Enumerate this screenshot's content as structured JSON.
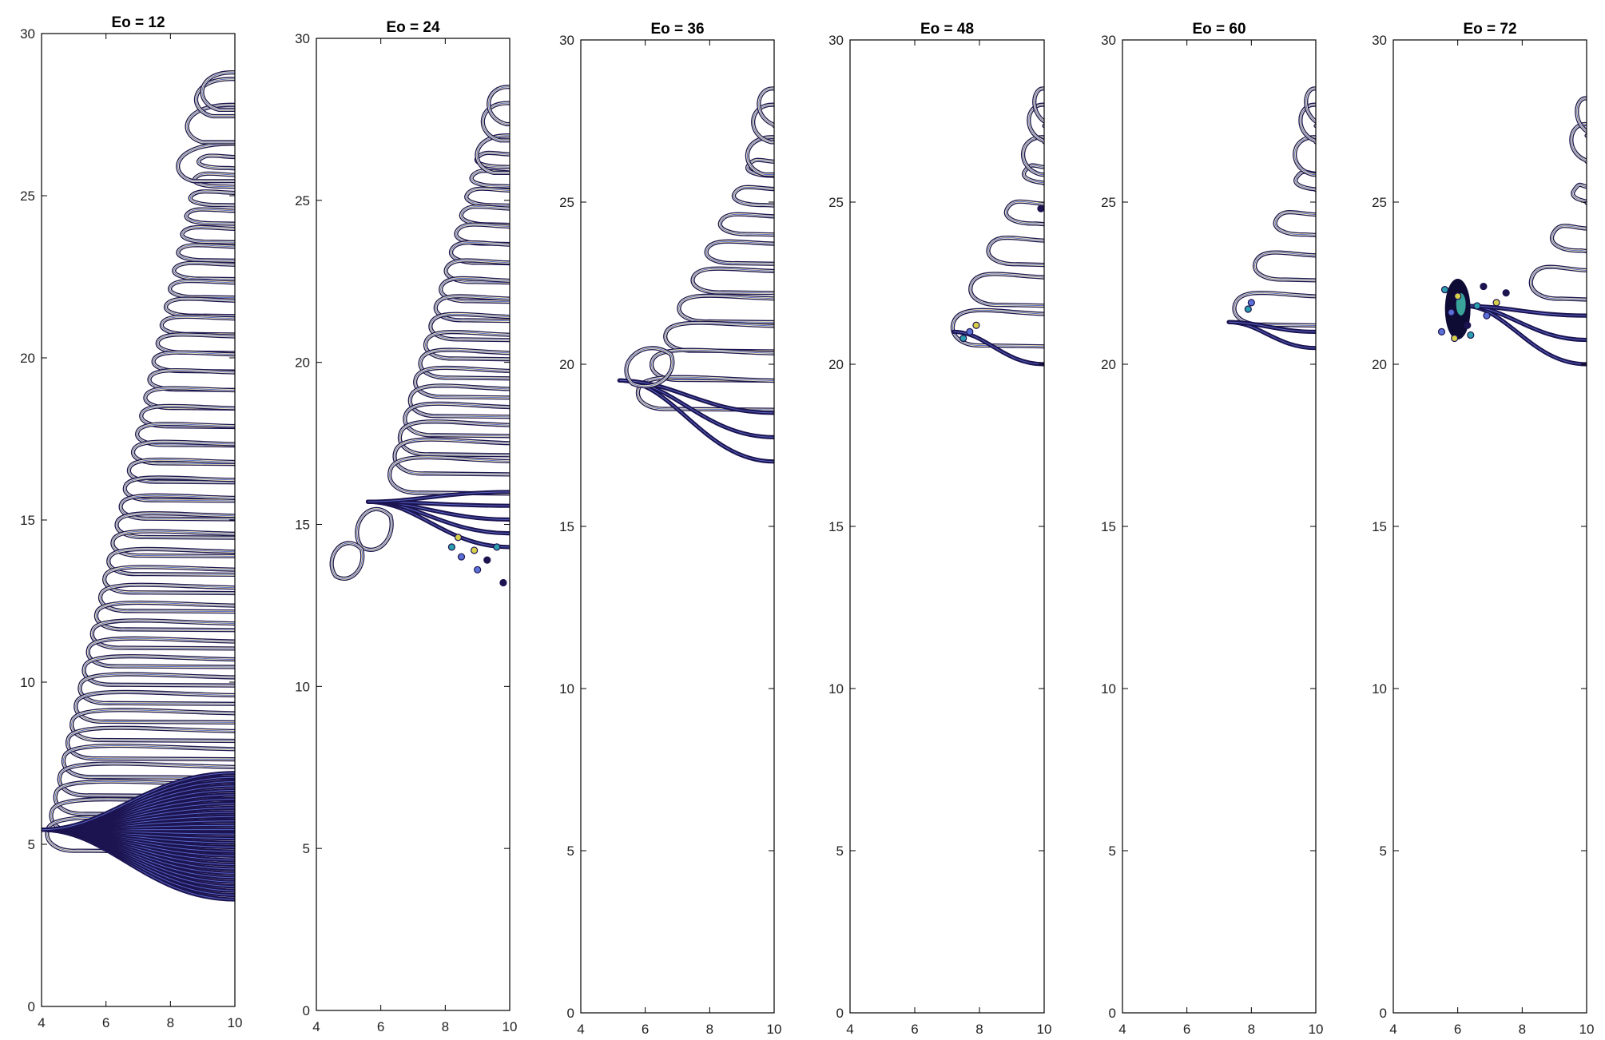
{
  "chart_data": [
    {
      "type": "contour",
      "title": "Eo = 12",
      "xlim": [
        4,
        10
      ],
      "ylim": [
        0,
        30
      ],
      "xticks": [
        "4",
        "6",
        "8",
        "10"
      ],
      "yticks": [
        "0",
        "5",
        "10",
        "15",
        "20",
        "25",
        "30"
      ],
      "rings_top": [
        [
          8.2,
          26.0
        ],
        [
          8.5,
          27.2
        ],
        [
          8.8,
          28.0
        ],
        [
          9.0,
          28.2
        ]
      ],
      "cups": {
        "count": 38,
        "y_start": 26.0,
        "y_end": 5.2,
        "tip_x_start": 8.9,
        "tip_x_end": 4.2,
        "width_start": 0.35,
        "width_end": 0.95
      },
      "tails": {
        "count": 30,
        "x_start": 4.0,
        "y_start": 5.45,
        "y_end_min": 3.3,
        "y_end_max": 7.2
      },
      "specks": []
    },
    {
      "type": "contour",
      "title": "Eo = 24",
      "xlim": [
        4,
        10
      ],
      "ylim": [
        0,
        30
      ],
      "xticks": [
        "4",
        "6",
        "8",
        "10"
      ],
      "yticks": [
        "0",
        "5",
        "10",
        "15",
        "20",
        "25",
        "30"
      ],
      "rings_top": [
        [
          9.0,
          26.4
        ],
        [
          9.2,
          27.4
        ],
        [
          9.4,
          27.9
        ]
      ],
      "cups": {
        "count": 18,
        "y_start": 26.2,
        "y_end": 16.4,
        "tip_x_start": 9.0,
        "tip_x_end": 6.3,
        "width_start": 0.4,
        "width_end": 1.0
      },
      "tails": {
        "count": 5,
        "x_start": 5.6,
        "y_start": 15.7,
        "y_end_min": 14.3,
        "y_end_max": 16.0
      },
      "loops": [
        [
          5.4,
          14.3,
          0.9,
          1.6
        ],
        [
          4.6,
          13.4,
          0.8,
          1.4
        ]
      ],
      "specks": [
        [
          8.2,
          14.3
        ],
        [
          8.5,
          14.0
        ],
        [
          8.9,
          14.2
        ],
        [
          9.3,
          13.9
        ],
        [
          9.6,
          14.3
        ],
        [
          9.0,
          13.6
        ],
        [
          8.4,
          14.6
        ],
        [
          9.8,
          13.2
        ]
      ]
    },
    {
      "type": "contour",
      "title": "Eo = 36",
      "xlim": [
        4,
        10
      ],
      "ylim": [
        0,
        30
      ],
      "xticks": [
        "4",
        "6",
        "8",
        "10"
      ],
      "yticks": [
        "0",
        "5",
        "10",
        "15",
        "20",
        "25",
        "30"
      ],
      "rings_top": [
        [
          9.2,
          26.4
        ],
        [
          9.4,
          27.4
        ],
        [
          9.6,
          27.9
        ]
      ],
      "cups": {
        "count": 9,
        "y_start": 26.0,
        "y_end": 19.0,
        "tip_x_start": 9.2,
        "tip_x_end": 5.8,
        "width_start": 0.45,
        "width_end": 0.9
      },
      "tails": {
        "count": 3,
        "x_start": 5.2,
        "y_start": 19.5,
        "y_end_min": 17.0,
        "y_end_max": 18.5
      },
      "loops": [
        [
          5.6,
          19.4,
          1.2,
          1.5
        ]
      ],
      "specks": []
    },
    {
      "type": "contour",
      "title": "Eo = 48",
      "xlim": [
        4,
        10
      ],
      "ylim": [
        0,
        30
      ],
      "xticks": [
        "4",
        "6",
        "8",
        "10"
      ],
      "yticks": [
        "0",
        "5",
        "10",
        "15",
        "20",
        "25",
        "30"
      ],
      "rings_top": [
        [
          9.4,
          26.4
        ],
        [
          9.6,
          27.4
        ],
        [
          9.8,
          27.9
        ]
      ],
      "cups": {
        "count": 5,
        "y_start": 25.8,
        "y_end": 21.0,
        "tip_x_start": 9.4,
        "tip_x_end": 7.2,
        "width_start": 0.5,
        "width_end": 1.0
      },
      "tails": {
        "count": 1,
        "x_start": 7.2,
        "y_start": 21.0,
        "y_end_min": 20.0,
        "y_end_max": 20.0
      },
      "specks": [
        [
          7.5,
          20.8
        ],
        [
          7.7,
          21.0
        ],
        [
          7.9,
          21.2
        ],
        [
          9.9,
          24.8
        ]
      ]
    },
    {
      "type": "contour",
      "title": "Eo = 60",
      "xlim": [
        4,
        10
      ],
      "ylim": [
        0,
        30
      ],
      "xticks": [
        "4",
        "6",
        "8",
        "10"
      ],
      "yticks": [
        "0",
        "5",
        "10",
        "15",
        "20",
        "25",
        "30"
      ],
      "rings_top": [
        [
          9.4,
          26.4
        ],
        [
          9.6,
          27.4
        ],
        [
          9.8,
          27.9
        ]
      ],
      "cups": {
        "count": 4,
        "y_start": 25.6,
        "y_end": 21.6,
        "tip_x_start": 9.4,
        "tip_x_end": 7.5,
        "width_start": 0.5,
        "width_end": 0.9
      },
      "tails": {
        "count": 2,
        "x_start": 7.3,
        "y_start": 21.3,
        "y_end_min": 20.5,
        "y_end_max": 21.0
      },
      "specks": [
        [
          7.9,
          21.7
        ],
        [
          8.0,
          21.9
        ]
      ]
    },
    {
      "type": "contour",
      "title": "Eo = 72",
      "xlim": [
        4,
        10
      ],
      "ylim": [
        0,
        30
      ],
      "xticks": [
        "4",
        "6",
        "8",
        "10"
      ],
      "yticks": [
        "0",
        "5",
        "10",
        "15",
        "20",
        "25",
        "30"
      ],
      "rings_top": [
        [
          9.6,
          26.8
        ],
        [
          9.8,
          27.6
        ]
      ],
      "cups": {
        "count": 3,
        "y_start": 25.2,
        "y_end": 22.4,
        "tip_x_start": 9.6,
        "tip_x_end": 8.3,
        "width_start": 0.5,
        "width_end": 0.9
      },
      "tails": {
        "count": 3,
        "x_start": 6.2,
        "y_start": 21.8,
        "y_end_min": 20.0,
        "y_end_max": 21.5
      },
      "blob": [
        6.0,
        21.7
      ],
      "specks": [
        [
          5.6,
          22.3
        ],
        [
          5.8,
          21.6
        ],
        [
          6.0,
          22.1
        ],
        [
          6.3,
          21.2
        ],
        [
          6.6,
          21.8
        ],
        [
          6.9,
          21.5
        ],
        [
          7.2,
          21.9
        ],
        [
          7.5,
          22.2
        ],
        [
          6.4,
          20.9
        ],
        [
          5.5,
          21.0
        ],
        [
          5.9,
          20.8
        ],
        [
          6.8,
          22.4
        ]
      ]
    }
  ]
}
